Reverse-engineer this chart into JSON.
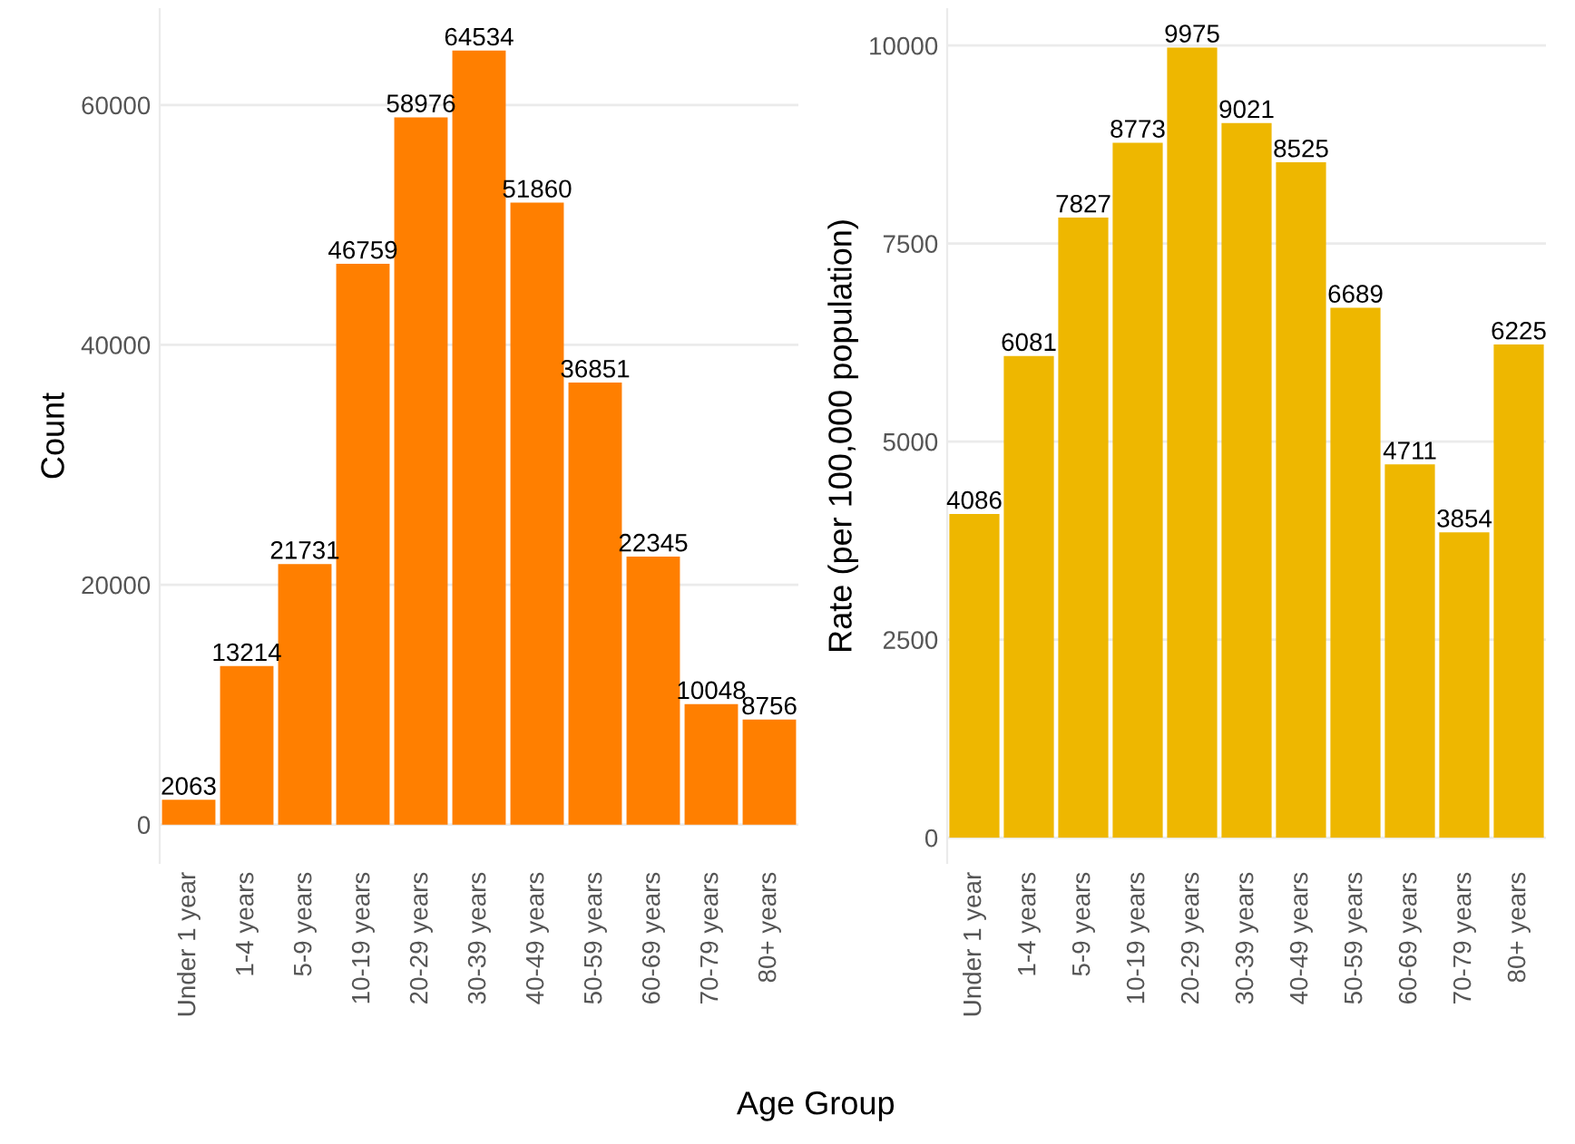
{
  "chart_data": [
    {
      "type": "bar",
      "ylabel": "Count",
      "xlabel": "Age Group",
      "categories": [
        "Under 1 year",
        "1-4 years",
        "5-9 years",
        "10-19 years",
        "20-29 years",
        "30-39 years",
        "40-49 years",
        "50-59 years",
        "60-69 years",
        "70-79 years",
        "80+ years"
      ],
      "values": [
        2063,
        13214,
        21731,
        46759,
        58976,
        64534,
        51860,
        36851,
        22345,
        10048,
        8756
      ],
      "color": "#ff7f00",
      "data_labels": true,
      "ylim": [
        -3200,
        68000
      ],
      "yticks": [
        0,
        20000,
        40000,
        60000
      ],
      "grid": "y"
    },
    {
      "type": "bar",
      "ylabel": "Rate (per 100,000 population)",
      "categories": [
        "Under 1 year",
        "1-4 years",
        "5-9 years",
        "10-19 years",
        "20-29 years",
        "30-39 years",
        "40-49 years",
        "50-59 years",
        "60-69 years",
        "70-79 years",
        "80+ years"
      ],
      "values": [
        4086,
        6081,
        7827,
        8773,
        9975,
        9021,
        8525,
        6689,
        4711,
        3854,
        6225
      ],
      "color": "#eeb700",
      "data_labels": true,
      "ylim": [
        -320,
        10460
      ],
      "yticks": [
        0,
        2500,
        5000,
        7500,
        10000
      ],
      "grid": "y"
    }
  ]
}
